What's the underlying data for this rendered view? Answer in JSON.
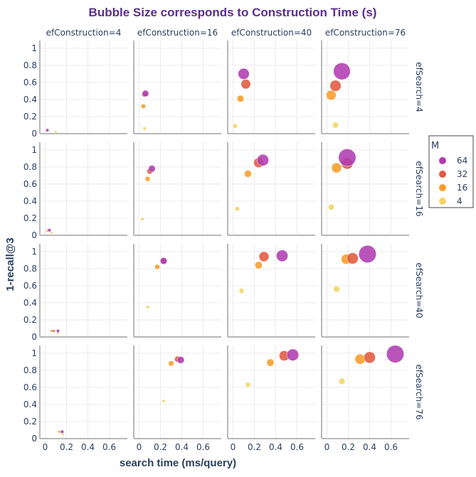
{
  "chart_data": {
    "type": "scatter",
    "title": "Bubble Size corresponds to Construction Time (s)",
    "xlabel": "search time (ms/query)",
    "ylabel": "1-recall@3",
    "xlim": [
      -0.05,
      0.77
    ],
    "ylim": [
      0,
      1.09
    ],
    "x_ticks": [
      "0",
      "0.2",
      "0.4",
      "0.6"
    ],
    "x_tick_values": [
      0,
      0.2,
      0.4,
      0.6
    ],
    "y_ticks": [
      "0",
      "0.2",
      "0.4",
      "0.6",
      "0.8",
      "1"
    ],
    "y_tick_values": [
      0,
      0.2,
      0.4,
      0.6,
      0.8,
      1
    ],
    "grid": true,
    "facet_col_title": "efConstruction",
    "facet_row_title": "efSearch",
    "facet_cols": [
      "efConstruction=4",
      "efConstruction=16",
      "efConstruction=40",
      "efConstruction=76"
    ],
    "facet_rows": [
      "efSearch=4",
      "efSearch=16",
      "efSearch=40",
      "efSearch=76"
    ],
    "legend": {
      "title": "M",
      "placement": "right",
      "items": [
        {
          "label": "64",
          "color": "#b13cb0"
        },
        {
          "label": "32",
          "color": "#e05a3f"
        },
        {
          "label": "16",
          "color": "#f89c28"
        },
        {
          "label": "4",
          "color": "#f3d565"
        }
      ]
    },
    "size_meaning": "Construction Time (s)",
    "series": [
      {
        "name": "64",
        "points": [
          {
            "row": 0,
            "col": 0,
            "x": 0.02,
            "y": 0.04,
            "size": 0.3
          },
          {
            "row": 0,
            "col": 1,
            "x": 0.06,
            "y": 0.47,
            "size": 1.2
          },
          {
            "row": 0,
            "col": 2,
            "x": 0.1,
            "y": 0.7,
            "size": 3.5
          },
          {
            "row": 0,
            "col": 3,
            "x": 0.14,
            "y": 0.73,
            "size": 8.0
          },
          {
            "row": 1,
            "col": 0,
            "x": 0.04,
            "y": 0.06,
            "size": 0.3
          },
          {
            "row": 1,
            "col": 1,
            "x": 0.12,
            "y": 0.78,
            "size": 1.3
          },
          {
            "row": 1,
            "col": 2,
            "x": 0.28,
            "y": 0.88,
            "size": 3.8
          },
          {
            "row": 1,
            "col": 3,
            "x": 0.19,
            "y": 0.91,
            "size": 8.5
          },
          {
            "row": 2,
            "col": 0,
            "x": 0.12,
            "y": 0.07,
            "size": 0.3
          },
          {
            "row": 2,
            "col": 1,
            "x": 0.23,
            "y": 0.89,
            "size": 1.3
          },
          {
            "row": 2,
            "col": 2,
            "x": 0.46,
            "y": 0.95,
            "size": 3.8
          },
          {
            "row": 2,
            "col": 3,
            "x": 0.38,
            "y": 0.97,
            "size": 8.5
          },
          {
            "row": 3,
            "col": 0,
            "x": 0.16,
            "y": 0.08,
            "size": 0.3
          },
          {
            "row": 3,
            "col": 1,
            "x": 0.39,
            "y": 0.92,
            "size": 1.4
          },
          {
            "row": 3,
            "col": 2,
            "x": 0.56,
            "y": 0.98,
            "size": 3.9
          },
          {
            "row": 3,
            "col": 3,
            "x": 0.64,
            "y": 0.99,
            "size": 8.5
          }
        ]
      },
      {
        "name": "32",
        "points": [
          {
            "row": 0,
            "col": 1,
            "x": 0.05,
            "y": 0.46,
            "size": 0.8
          },
          {
            "row": 0,
            "col": 2,
            "x": 0.12,
            "y": 0.58,
            "size": 2.6
          },
          {
            "row": 0,
            "col": 3,
            "x": 0.08,
            "y": 0.56,
            "size": 3.5
          },
          {
            "row": 1,
            "col": 0,
            "x": 0.03,
            "y": 0.06,
            "size": 0.2
          },
          {
            "row": 1,
            "col": 1,
            "x": 0.1,
            "y": 0.75,
            "size": 0.9
          },
          {
            "row": 1,
            "col": 2,
            "x": 0.24,
            "y": 0.85,
            "size": 2.7
          },
          {
            "row": 1,
            "col": 3,
            "x": 0.19,
            "y": 0.84,
            "size": 3.6
          },
          {
            "row": 2,
            "col": 0,
            "x": 0.08,
            "y": 0.07,
            "size": 0.2
          },
          {
            "row": 2,
            "col": 1,
            "x": 0.23,
            "y": 0.89,
            "size": 0.9
          },
          {
            "row": 2,
            "col": 2,
            "x": 0.29,
            "y": 0.94,
            "size": 2.8
          },
          {
            "row": 2,
            "col": 3,
            "x": 0.24,
            "y": 0.92,
            "size": 3.6
          },
          {
            "row": 3,
            "col": 0,
            "x": 0.15,
            "y": 0.08,
            "size": 0.2
          },
          {
            "row": 3,
            "col": 1,
            "x": 0.36,
            "y": 0.93,
            "size": 1.0
          },
          {
            "row": 3,
            "col": 2,
            "x": 0.48,
            "y": 0.97,
            "size": 2.9
          },
          {
            "row": 3,
            "col": 3,
            "x": 0.4,
            "y": 0.95,
            "size": 3.7
          }
        ]
      },
      {
        "name": "16",
        "points": [
          {
            "row": 0,
            "col": 1,
            "x": 0.04,
            "y": 0.32,
            "size": 0.6
          },
          {
            "row": 0,
            "col": 2,
            "x": 0.07,
            "y": 0.41,
            "size": 1.3
          },
          {
            "row": 0,
            "col": 3,
            "x": 0.04,
            "y": 0.45,
            "size": 2.7
          },
          {
            "row": 1,
            "col": 0,
            "x": 0.02,
            "y": 0.05,
            "size": 0.1
          },
          {
            "row": 1,
            "col": 1,
            "x": 0.08,
            "y": 0.66,
            "size": 0.7
          },
          {
            "row": 1,
            "col": 2,
            "x": 0.14,
            "y": 0.72,
            "size": 1.4
          },
          {
            "row": 1,
            "col": 3,
            "x": 0.09,
            "y": 0.79,
            "size": 2.8
          },
          {
            "row": 2,
            "col": 0,
            "x": 0.06,
            "y": 0.07,
            "size": 0.1
          },
          {
            "row": 2,
            "col": 1,
            "x": 0.17,
            "y": 0.82,
            "size": 0.7
          },
          {
            "row": 2,
            "col": 2,
            "x": 0.24,
            "y": 0.84,
            "size": 1.5
          },
          {
            "row": 2,
            "col": 3,
            "x": 0.18,
            "y": 0.91,
            "size": 2.8
          },
          {
            "row": 3,
            "col": 0,
            "x": 0.13,
            "y": 0.08,
            "size": 0.1
          },
          {
            "row": 3,
            "col": 1,
            "x": 0.3,
            "y": 0.88,
            "size": 0.8
          },
          {
            "row": 3,
            "col": 2,
            "x": 0.35,
            "y": 0.89,
            "size": 1.5
          },
          {
            "row": 3,
            "col": 3,
            "x": 0.31,
            "y": 0.93,
            "size": 2.9
          }
        ]
      },
      {
        "name": "4",
        "points": [
          {
            "row": 0,
            "col": 0,
            "x": 0.1,
            "y": 0.02,
            "size": 0.05
          },
          {
            "row": 0,
            "col": 1,
            "x": 0.05,
            "y": 0.06,
            "size": 0.3
          },
          {
            "row": 0,
            "col": 2,
            "x": 0.02,
            "y": 0.09,
            "size": 0.6
          },
          {
            "row": 0,
            "col": 3,
            "x": 0.08,
            "y": 0.1,
            "size": 1.0
          },
          {
            "row": 1,
            "col": 0,
            "x": 0.06,
            "y": 0.03,
            "size": 0.05
          },
          {
            "row": 1,
            "col": 1,
            "x": 0.03,
            "y": 0.19,
            "size": 0.3
          },
          {
            "row": 1,
            "col": 2,
            "x": 0.04,
            "y": 0.31,
            "size": 0.6
          },
          {
            "row": 1,
            "col": 3,
            "x": 0.04,
            "y": 0.33,
            "size": 1.0
          },
          {
            "row": 2,
            "col": 0,
            "x": 0.12,
            "y": 0.04,
            "size": 0.05
          },
          {
            "row": 2,
            "col": 1,
            "x": 0.08,
            "y": 0.35,
            "size": 0.3
          },
          {
            "row": 2,
            "col": 2,
            "x": 0.08,
            "y": 0.54,
            "size": 0.7
          },
          {
            "row": 2,
            "col": 3,
            "x": 0.09,
            "y": 0.56,
            "size": 1.1
          },
          {
            "row": 3,
            "col": 0,
            "x": 0.17,
            "y": 0.05,
            "size": 0.05
          },
          {
            "row": 3,
            "col": 1,
            "x": 0.23,
            "y": 0.44,
            "size": 0.3
          },
          {
            "row": 3,
            "col": 2,
            "x": 0.14,
            "y": 0.63,
            "size": 0.7
          },
          {
            "row": 3,
            "col": 3,
            "x": 0.14,
            "y": 0.67,
            "size": 1.1
          }
        ]
      }
    ]
  }
}
